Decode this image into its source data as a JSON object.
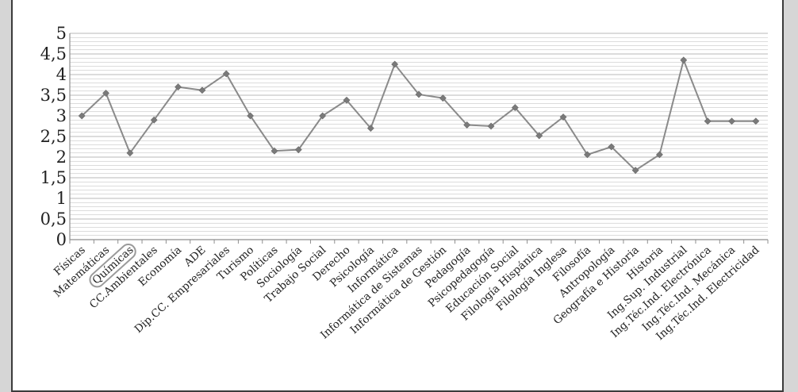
{
  "chart_data": {
    "type": "line",
    "title": "",
    "xlabel": "",
    "ylabel": "",
    "ylim": [
      0,
      5
    ],
    "yticks": [
      "0",
      "0,5",
      "1",
      "1,5",
      "2",
      "2,5",
      "3",
      "3,5",
      "4",
      "4,5",
      "5"
    ],
    "grid": "horizontal",
    "colors": {
      "line": "#8a8a8a",
      "marker": "#7a7a7a",
      "grid": "#b8b8b8",
      "axis": "#8f8f8f",
      "highlight": "#9a9a9a"
    },
    "highlighted_category": "Químicas",
    "categories": [
      "Físicas",
      "Matemáticas",
      "Químicas",
      "CC.Ambientales",
      "Economía",
      "ADE",
      "Dip.CC. Empresariales",
      "Turismo",
      "Políticas",
      "Sociología",
      "Trabajo Social",
      "Derecho",
      "Psicología",
      "Informática",
      "Informática de Sistemas",
      "Informática de Gestión",
      "Pedagogía",
      "Psicopedagogía",
      "Educación Social",
      "Filología Hispánica",
      "Filología Inglesa",
      "Filosofía",
      "Antropología",
      "Geografía e Historia",
      "Historia",
      "Ing.Sup. Industrial",
      "Ing.Téc.Ind. Electrónica",
      "Ing.Téc.Ind. Mecánica",
      "Ing.Téc.Ind. Electricidad"
    ],
    "series": [
      {
        "values": [
          3.0,
          3.55,
          2.1,
          2.9,
          3.7,
          3.62,
          4.02,
          3.0,
          2.15,
          2.18,
          3.0,
          3.38,
          2.7,
          4.25,
          3.52,
          3.43,
          2.78,
          2.75,
          3.2,
          2.52,
          2.97,
          2.06,
          2.25,
          1.68,
          2.06,
          4.35,
          2.87,
          2.87,
          2.87
        ]
      }
    ]
  }
}
